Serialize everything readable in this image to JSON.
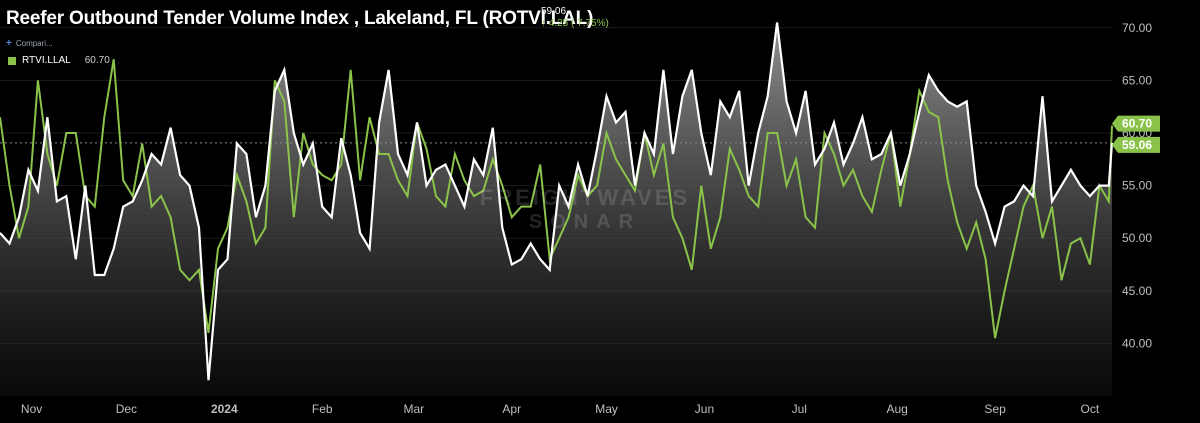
{
  "header": {
    "title": "Reefer Outbound Tender Volume Index , Lakeland, FL (ROTVI.LAL)",
    "last_value": "59.06",
    "change_text": "4.25 ( 7.75%)",
    "change_arrow": "↑"
  },
  "compare": {
    "label": "Compari...",
    "icon": "plus-icon"
  },
  "legend": {
    "series_name": "RTVI.LLAL",
    "series_value": "60.70"
  },
  "watermark": {
    "line1": "FREIGHTWAVES",
    "line2": "SONAR"
  },
  "colors": {
    "background": "#000000",
    "primary_line": "#ffffff",
    "secondary_line": "#8bc34a",
    "area_top": "#9a9a9a",
    "area_bottom": "#1a1a1a",
    "tag_secondary": "#8bc34a",
    "tag_primary": "#ffffff"
  },
  "chart_data": {
    "type": "line",
    "x_start": "2023-10-22",
    "x_end": "2024-10-08",
    "ylim": [
      35,
      71.5
    ],
    "y_ticks": [
      "40.00",
      "45.00",
      "50.00",
      "55.00",
      "60.00",
      "65.00",
      "70.00"
    ],
    "x_tick_labels": [
      {
        "date": "2023-11-01",
        "label": "Nov"
      },
      {
        "date": "2023-12-01",
        "label": "Dec"
      },
      {
        "date": "2024-01-01",
        "label": "2024"
      },
      {
        "date": "2024-02-01",
        "label": "Feb"
      },
      {
        "date": "2024-03-01",
        "label": "Mar"
      },
      {
        "date": "2024-04-01",
        "label": "Apr"
      },
      {
        "date": "2024-05-01",
        "label": "May"
      },
      {
        "date": "2024-06-01",
        "label": "Jun"
      },
      {
        "date": "2024-07-01",
        "label": "Jul"
      },
      {
        "date": "2024-08-01",
        "label": "Aug"
      },
      {
        "date": "2024-09-01",
        "label": "Sep"
      },
      {
        "date": "2024-10-01",
        "label": "Oct"
      }
    ],
    "reference_line": 59.06,
    "series": [
      {
        "name": "ROTVI.LAL",
        "last_label": "59.06",
        "points": [
          [
            "2023-10-22",
            50.5
          ],
          [
            "2023-10-25",
            49.5
          ],
          [
            "2023-10-28",
            52.0
          ],
          [
            "2023-10-31",
            56.5
          ],
          [
            "2023-11-03",
            54.5
          ],
          [
            "2023-11-06",
            61.5
          ],
          [
            "2023-11-09",
            53.5
          ],
          [
            "2023-11-12",
            54.0
          ],
          [
            "2023-11-15",
            48.0
          ],
          [
            "2023-11-18",
            55.0
          ],
          [
            "2023-11-21",
            46.5
          ],
          [
            "2023-11-24",
            46.5
          ],
          [
            "2023-11-27",
            49.0
          ],
          [
            "2023-11-30",
            53.0
          ],
          [
            "2023-12-03",
            53.5
          ],
          [
            "2023-12-06",
            55.5
          ],
          [
            "2023-12-09",
            58.0
          ],
          [
            "2023-12-12",
            57.0
          ],
          [
            "2023-12-15",
            60.5
          ],
          [
            "2023-12-18",
            56.0
          ],
          [
            "2023-12-21",
            55.0
          ],
          [
            "2023-12-24",
            51.0
          ],
          [
            "2023-12-27",
            36.5
          ],
          [
            "2023-12-30",
            47.0
          ],
          [
            "2024-01-02",
            48.0
          ],
          [
            "2024-01-05",
            59.0
          ],
          [
            "2024-01-08",
            58.0
          ],
          [
            "2024-01-11",
            52.0
          ],
          [
            "2024-01-14",
            55.0
          ],
          [
            "2024-01-17",
            64.0
          ],
          [
            "2024-01-20",
            66.0
          ],
          [
            "2024-01-23",
            60.0
          ],
          [
            "2024-01-26",
            57.0
          ],
          [
            "2024-01-29",
            59.0
          ],
          [
            "2024-02-01",
            53.0
          ],
          [
            "2024-02-04",
            52.0
          ],
          [
            "2024-02-07",
            59.5
          ],
          [
            "2024-02-10",
            56.0
          ],
          [
            "2024-02-13",
            50.5
          ],
          [
            "2024-02-16",
            49.0
          ],
          [
            "2024-02-19",
            61.0
          ],
          [
            "2024-02-22",
            66.0
          ],
          [
            "2024-02-25",
            58.0
          ],
          [
            "2024-02-28",
            56.0
          ],
          [
            "2024-03-02",
            61.0
          ],
          [
            "2024-03-05",
            55.0
          ],
          [
            "2024-03-08",
            56.5
          ],
          [
            "2024-03-11",
            57.0
          ],
          [
            "2024-03-14",
            55.0
          ],
          [
            "2024-03-17",
            53.0
          ],
          [
            "2024-03-20",
            57.5
          ],
          [
            "2024-03-23",
            56.0
          ],
          [
            "2024-03-26",
            60.5
          ],
          [
            "2024-03-29",
            51.0
          ],
          [
            "2024-04-01",
            47.5
          ],
          [
            "2024-04-04",
            48.0
          ],
          [
            "2024-04-07",
            49.5
          ],
          [
            "2024-04-10",
            48.0
          ],
          [
            "2024-04-13",
            47.0
          ],
          [
            "2024-04-16",
            55.0
          ],
          [
            "2024-04-19",
            53.0
          ],
          [
            "2024-04-22",
            57.0
          ],
          [
            "2024-04-25",
            54.0
          ],
          [
            "2024-04-28",
            58.5
          ],
          [
            "2024-05-01",
            63.5
          ],
          [
            "2024-05-04",
            61.0
          ],
          [
            "2024-05-07",
            62.0
          ],
          [
            "2024-05-10",
            55.0
          ],
          [
            "2024-05-13",
            60.0
          ],
          [
            "2024-05-16",
            58.0
          ],
          [
            "2024-05-19",
            66.0
          ],
          [
            "2024-05-22",
            58.0
          ],
          [
            "2024-05-25",
            63.5
          ],
          [
            "2024-05-28",
            66.0
          ],
          [
            "2024-05-31",
            60.0
          ],
          [
            "2024-06-03",
            56.0
          ],
          [
            "2024-06-06",
            63.0
          ],
          [
            "2024-06-09",
            61.5
          ],
          [
            "2024-06-12",
            64.0
          ],
          [
            "2024-06-15",
            55.0
          ],
          [
            "2024-06-18",
            60.0
          ],
          [
            "2024-06-21",
            63.5
          ],
          [
            "2024-06-24",
            70.5
          ],
          [
            "2024-06-27",
            63.0
          ],
          [
            "2024-06-30",
            60.0
          ],
          [
            "2024-07-03",
            64.0
          ],
          [
            "2024-07-06",
            57.0
          ],
          [
            "2024-07-09",
            58.5
          ],
          [
            "2024-07-12",
            61.0
          ],
          [
            "2024-07-15",
            57.0
          ],
          [
            "2024-07-18",
            59.0
          ],
          [
            "2024-07-21",
            61.5
          ],
          [
            "2024-07-24",
            57.5
          ],
          [
            "2024-07-27",
            58.0
          ],
          [
            "2024-07-30",
            60.0
          ],
          [
            "2024-08-02",
            55.0
          ],
          [
            "2024-08-05",
            58.0
          ],
          [
            "2024-08-08",
            62.0
          ],
          [
            "2024-08-11",
            65.5
          ],
          [
            "2024-08-14",
            64.0
          ],
          [
            "2024-08-17",
            63.0
          ],
          [
            "2024-08-20",
            62.5
          ],
          [
            "2024-08-23",
            63.0
          ],
          [
            "2024-08-26",
            55.0
          ],
          [
            "2024-08-29",
            52.5
          ],
          [
            "2024-09-01",
            49.5
          ],
          [
            "2024-09-04",
            53.0
          ],
          [
            "2024-09-07",
            53.5
          ],
          [
            "2024-09-10",
            55.0
          ],
          [
            "2024-09-13",
            54.0
          ],
          [
            "2024-09-16",
            63.5
          ],
          [
            "2024-09-19",
            53.5
          ],
          [
            "2024-09-22",
            55.0
          ],
          [
            "2024-09-25",
            56.5
          ],
          [
            "2024-09-28",
            55.0
          ],
          [
            "2024-10-01",
            54.0
          ],
          [
            "2024-10-04",
            55.0
          ],
          [
            "2024-10-07",
            55.0
          ],
          [
            "2024-10-08",
            59.06
          ]
        ]
      },
      {
        "name": "RTVI.LLAL",
        "last_label": "60.70",
        "points": [
          [
            "2023-10-22",
            61.5
          ],
          [
            "2023-10-25",
            55.0
          ],
          [
            "2023-10-28",
            50.0
          ],
          [
            "2023-10-31",
            53.0
          ],
          [
            "2023-11-03",
            65.0
          ],
          [
            "2023-11-06",
            58.0
          ],
          [
            "2023-11-09",
            55.0
          ],
          [
            "2023-11-12",
            60.0
          ],
          [
            "2023-11-15",
            60.0
          ],
          [
            "2023-11-18",
            54.0
          ],
          [
            "2023-11-21",
            53.0
          ],
          [
            "2023-11-24",
            61.5
          ],
          [
            "2023-11-27",
            67.0
          ],
          [
            "2023-11-30",
            55.5
          ],
          [
            "2023-12-03",
            54.0
          ],
          [
            "2023-12-06",
            59.0
          ],
          [
            "2023-12-09",
            53.0
          ],
          [
            "2023-12-12",
            54.0
          ],
          [
            "2023-12-15",
            52.0
          ],
          [
            "2023-12-18",
            47.0
          ],
          [
            "2023-12-21",
            46.0
          ],
          [
            "2023-12-24",
            47.0
          ],
          [
            "2023-12-27",
            41.0
          ],
          [
            "2023-12-30",
            49.0
          ],
          [
            "2024-01-02",
            51.0
          ],
          [
            "2024-01-05",
            56.0
          ],
          [
            "2024-01-08",
            53.5
          ],
          [
            "2024-01-11",
            49.5
          ],
          [
            "2024-01-14",
            51.0
          ],
          [
            "2024-01-17",
            65.0
          ],
          [
            "2024-01-20",
            63.0
          ],
          [
            "2024-01-23",
            52.0
          ],
          [
            "2024-01-26",
            60.0
          ],
          [
            "2024-01-29",
            57.0
          ],
          [
            "2024-02-01",
            56.0
          ],
          [
            "2024-02-04",
            55.5
          ],
          [
            "2024-02-07",
            57.0
          ],
          [
            "2024-02-10",
            66.0
          ],
          [
            "2024-02-13",
            55.5
          ],
          [
            "2024-02-16",
            61.5
          ],
          [
            "2024-02-19",
            58.0
          ],
          [
            "2024-02-22",
            58.0
          ],
          [
            "2024-02-25",
            55.5
          ],
          [
            "2024-02-28",
            54.0
          ],
          [
            "2024-03-02",
            61.0
          ],
          [
            "2024-03-05",
            58.5
          ],
          [
            "2024-03-08",
            54.0
          ],
          [
            "2024-03-11",
            53.0
          ],
          [
            "2024-03-14",
            58.0
          ],
          [
            "2024-03-17",
            55.5
          ],
          [
            "2024-03-20",
            54.0
          ],
          [
            "2024-03-23",
            54.5
          ],
          [
            "2024-03-26",
            57.5
          ],
          [
            "2024-03-29",
            55.0
          ],
          [
            "2024-04-01",
            52.0
          ],
          [
            "2024-04-04",
            53.0
          ],
          [
            "2024-04-07",
            53.0
          ],
          [
            "2024-04-10",
            57.0
          ],
          [
            "2024-04-13",
            48.0
          ],
          [
            "2024-04-16",
            50.0
          ],
          [
            "2024-04-19",
            52.0
          ],
          [
            "2024-04-22",
            56.0
          ],
          [
            "2024-04-25",
            54.0
          ],
          [
            "2024-04-28",
            55.0
          ],
          [
            "2024-05-01",
            60.0
          ],
          [
            "2024-05-04",
            57.5
          ],
          [
            "2024-05-07",
            56.0
          ],
          [
            "2024-05-10",
            54.5
          ],
          [
            "2024-05-13",
            60.0
          ],
          [
            "2024-05-16",
            56.0
          ],
          [
            "2024-05-19",
            59.0
          ],
          [
            "2024-05-22",
            52.0
          ],
          [
            "2024-05-25",
            50.0
          ],
          [
            "2024-05-28",
            47.0
          ],
          [
            "2024-05-31",
            55.0
          ],
          [
            "2024-06-03",
            49.0
          ],
          [
            "2024-06-06",
            52.0
          ],
          [
            "2024-06-09",
            58.5
          ],
          [
            "2024-06-12",
            56.5
          ],
          [
            "2024-06-15",
            54.0
          ],
          [
            "2024-06-18",
            53.0
          ],
          [
            "2024-06-21",
            60.0
          ],
          [
            "2024-06-24",
            60.0
          ],
          [
            "2024-06-27",
            55.0
          ],
          [
            "2024-06-30",
            57.5
          ],
          [
            "2024-07-03",
            52.0
          ],
          [
            "2024-07-06",
            51.0
          ],
          [
            "2024-07-09",
            60.0
          ],
          [
            "2024-07-12",
            58.0
          ],
          [
            "2024-07-15",
            55.0
          ],
          [
            "2024-07-18",
            56.5
          ],
          [
            "2024-07-21",
            54.0
          ],
          [
            "2024-07-24",
            52.5
          ],
          [
            "2024-07-27",
            56.5
          ],
          [
            "2024-07-30",
            60.0
          ],
          [
            "2024-08-02",
            53.0
          ],
          [
            "2024-08-05",
            58.0
          ],
          [
            "2024-08-08",
            64.0
          ],
          [
            "2024-08-11",
            62.0
          ],
          [
            "2024-08-14",
            61.5
          ],
          [
            "2024-08-17",
            55.5
          ],
          [
            "2024-08-20",
            51.5
          ],
          [
            "2024-08-23",
            49.0
          ],
          [
            "2024-08-26",
            51.5
          ],
          [
            "2024-08-29",
            48.0
          ],
          [
            "2024-09-01",
            40.5
          ],
          [
            "2024-09-04",
            45.0
          ],
          [
            "2024-09-07",
            49.0
          ],
          [
            "2024-09-10",
            53.0
          ],
          [
            "2024-09-13",
            55.0
          ],
          [
            "2024-09-16",
            50.0
          ],
          [
            "2024-09-19",
            53.0
          ],
          [
            "2024-09-22",
            46.0
          ],
          [
            "2024-09-25",
            49.5
          ],
          [
            "2024-09-28",
            50.0
          ],
          [
            "2024-10-01",
            47.5
          ],
          [
            "2024-10-04",
            55.0
          ],
          [
            "2024-10-07",
            53.5
          ],
          [
            "2024-10-08",
            60.7
          ]
        ]
      }
    ]
  }
}
